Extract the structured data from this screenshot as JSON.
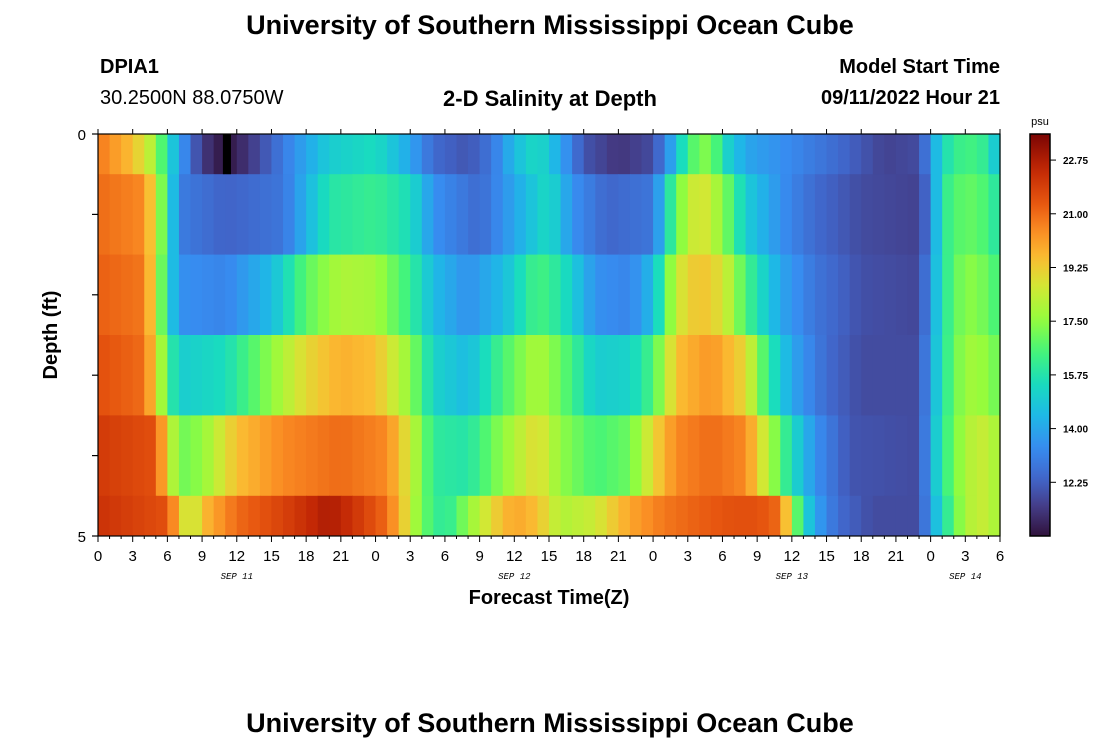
{
  "header": {
    "title": "University of Southern Mississippi Ocean Cube",
    "station_id": "DPIA1",
    "station_coords": "30.2500N  88.0750W",
    "subtitle": "2-D Salinity at Depth",
    "model_start_label": "Model Start Time",
    "model_start_value": "09/11/2022 Hour 21"
  },
  "footer": {
    "title": "University of Southern Mississippi Ocean Cube"
  },
  "chart_data": {
    "type": "heatmap",
    "title": "2-D Salinity at Depth",
    "xlabel": "Forecast Time(Z)",
    "ylabel": "Depth (ft)",
    "ylim": [
      0,
      5
    ],
    "y_tick_labels": [
      "0",
      "5"
    ],
    "x_tick_labels": [
      "0",
      "3",
      "6",
      "9",
      "12",
      "15",
      "18",
      "21",
      "0",
      "3",
      "6",
      "9",
      "12",
      "15",
      "18",
      "21",
      "0",
      "3",
      "6",
      "9",
      "12",
      "15",
      "18",
      "21",
      "0",
      "3",
      "6"
    ],
    "date_labels": [
      {
        "label": "SEP 11",
        "hour": 12
      },
      {
        "label": "SEP 12",
        "hour": 36
      },
      {
        "label": "SEP 13",
        "hour": 60
      },
      {
        "label": "SEP 14",
        "hour": 75
      }
    ],
    "x_hours_range": [
      0,
      78
    ],
    "colorbar": {
      "unit": "psu",
      "min": 10.5,
      "max": 23.6,
      "tick_labels": [
        "22.75",
        "21.00",
        "19.25",
        "17.50",
        "15.75",
        "14.00",
        "12.25"
      ],
      "tick_values": [
        22.75,
        21.0,
        19.25,
        17.5,
        15.75,
        14.0,
        12.25
      ]
    },
    "depth_layers": [
      {
        "depth_ft": "0.0-0.5",
        "keyframes": [
          [
            0,
            20.8
          ],
          [
            3,
            19.5
          ],
          [
            5,
            17.8
          ],
          [
            6,
            15.5
          ],
          [
            7,
            14.0
          ],
          [
            8,
            12.5
          ],
          [
            9,
            11.5
          ],
          [
            10,
            10.9
          ],
          [
            11,
            10.6
          ],
          [
            12,
            10.9
          ],
          [
            14,
            11.8
          ],
          [
            17,
            13.5
          ],
          [
            20,
            15.0
          ],
          [
            24,
            15.5
          ],
          [
            27,
            14.0
          ],
          [
            29,
            12.5
          ],
          [
            32,
            12.0
          ],
          [
            34,
            12.8
          ],
          [
            36,
            14.5
          ],
          [
            38,
            15.5
          ],
          [
            40,
            14.0
          ],
          [
            42,
            12.0
          ],
          [
            45,
            11.3
          ],
          [
            48,
            11.8
          ],
          [
            50,
            14.5
          ],
          [
            51,
            16.5
          ],
          [
            53,
            17.5
          ],
          [
            54,
            15.5
          ],
          [
            56,
            14.0
          ],
          [
            60,
            13.3
          ],
          [
            64,
            12.5
          ],
          [
            68,
            11.6
          ],
          [
            71,
            11.8
          ],
          [
            72,
            13.5
          ],
          [
            73,
            15.5
          ],
          [
            75,
            16.5
          ],
          [
            77,
            16.0
          ],
          [
            78,
            14.0
          ]
        ]
      },
      {
        "depth_ft": "0.5-1.5",
        "keyframes": [
          [
            0,
            21.0
          ],
          [
            4,
            20.5
          ],
          [
            5,
            18.5
          ],
          [
            6,
            16.0
          ],
          [
            7,
            13.0
          ],
          [
            11,
            12.3
          ],
          [
            16,
            12.8
          ],
          [
            20,
            15.8
          ],
          [
            24,
            16.2
          ],
          [
            27,
            15.5
          ],
          [
            29,
            13.5
          ],
          [
            33,
            12.5
          ],
          [
            36,
            14.0
          ],
          [
            39,
            15.5
          ],
          [
            41,
            13.5
          ],
          [
            44,
            12.4
          ],
          [
            48,
            12.8
          ],
          [
            50,
            17.0
          ],
          [
            52,
            19.0
          ],
          [
            54,
            17.5
          ],
          [
            56,
            15.0
          ],
          [
            59,
            13.5
          ],
          [
            62,
            12.5
          ],
          [
            66,
            11.8
          ],
          [
            71,
            11.6
          ],
          [
            72,
            13.0
          ],
          [
            73,
            16.0
          ],
          [
            75,
            17.0
          ],
          [
            77,
            16.5
          ],
          [
            78,
            15.5
          ]
        ]
      },
      {
        "depth_ft": "1.5-2.5",
        "keyframes": [
          [
            0,
            21.2
          ],
          [
            4,
            20.8
          ],
          [
            5,
            18.5
          ],
          [
            6,
            15.5
          ],
          [
            7,
            13.5
          ],
          [
            11,
            13.2
          ],
          [
            15,
            14.5
          ],
          [
            18,
            16.8
          ],
          [
            21,
            18.0
          ],
          [
            24,
            17.8
          ],
          [
            27,
            16.2
          ],
          [
            29,
            14.5
          ],
          [
            32,
            13.5
          ],
          [
            35,
            14.5
          ],
          [
            38,
            16.5
          ],
          [
            40,
            15.8
          ],
          [
            43,
            13.5
          ],
          [
            46,
            13.2
          ],
          [
            48,
            14.5
          ],
          [
            50,
            18.5
          ],
          [
            52,
            19.5
          ],
          [
            54,
            18.8
          ],
          [
            56,
            16.5
          ],
          [
            59,
            14.0
          ],
          [
            62,
            12.8
          ],
          [
            66,
            11.9
          ],
          [
            71,
            11.7
          ],
          [
            72,
            13.5
          ],
          [
            73,
            15.8
          ],
          [
            75,
            17.5
          ],
          [
            77,
            17.0
          ],
          [
            78,
            16.2
          ]
        ]
      },
      {
        "depth_ft": "2.5-3.5",
        "keyframes": [
          [
            0,
            21.5
          ],
          [
            4,
            21.0
          ],
          [
            5,
            19.0
          ],
          [
            6,
            16.5
          ],
          [
            7,
            15.0
          ],
          [
            11,
            15.5
          ],
          [
            14,
            17.0
          ],
          [
            18,
            19.0
          ],
          [
            21,
            19.8
          ],
          [
            24,
            19.5
          ],
          [
            27,
            17.5
          ],
          [
            29,
            15.2
          ],
          [
            32,
            14.5
          ],
          [
            35,
            16.5
          ],
          [
            38,
            18.0
          ],
          [
            40,
            17.0
          ],
          [
            43,
            15.0
          ],
          [
            46,
            15.2
          ],
          [
            48,
            16.5
          ],
          [
            50,
            19.5
          ],
          [
            53,
            20.3
          ],
          [
            56,
            19.0
          ],
          [
            58,
            16.0
          ],
          [
            60,
            14.0
          ],
          [
            63,
            12.5
          ],
          [
            66,
            11.8
          ],
          [
            71,
            11.8
          ],
          [
            72,
            13.8
          ],
          [
            73,
            15.8
          ],
          [
            75,
            17.8
          ],
          [
            77,
            17.5
          ],
          [
            78,
            16.8
          ]
        ]
      },
      {
        "depth_ft": "3.5-4.5",
        "keyframes": [
          [
            0,
            22.0
          ],
          [
            5,
            21.5
          ],
          [
            6,
            19.0
          ],
          [
            7,
            17.0
          ],
          [
            9,
            17.5
          ],
          [
            12,
            19.5
          ],
          [
            16,
            20.5
          ],
          [
            21,
            21.0
          ],
          [
            25,
            20.5
          ],
          [
            27,
            18.5
          ],
          [
            29,
            16.0
          ],
          [
            32,
            15.8
          ],
          [
            35,
            17.5
          ],
          [
            38,
            19.0
          ],
          [
            40,
            17.5
          ],
          [
            43,
            16.5
          ],
          [
            46,
            17.0
          ],
          [
            48,
            19.0
          ],
          [
            50,
            20.5
          ],
          [
            53,
            21.0
          ],
          [
            56,
            20.5
          ],
          [
            58,
            18.0
          ],
          [
            60,
            15.5
          ],
          [
            62,
            13.5
          ],
          [
            65,
            12.0
          ],
          [
            71,
            11.8
          ],
          [
            72,
            14.0
          ],
          [
            73,
            16.0
          ],
          [
            75,
            18.0
          ],
          [
            77,
            18.5
          ],
          [
            78,
            17.5
          ]
        ]
      },
      {
        "depth_ft": "4.5-5.0",
        "keyframes": [
          [
            0,
            22.2
          ],
          [
            6,
            21.5
          ],
          [
            7,
            19.5
          ],
          [
            8,
            18.0
          ],
          [
            9,
            19.5
          ],
          [
            12,
            21.0
          ],
          [
            16,
            21.8
          ],
          [
            20,
            22.8
          ],
          [
            22,
            22.2
          ],
          [
            25,
            21.0
          ],
          [
            27,
            18.5
          ],
          [
            28,
            17.0
          ],
          [
            30,
            15.8
          ],
          [
            32,
            17.5
          ],
          [
            34,
            19.0
          ],
          [
            36,
            20.0
          ],
          [
            38,
            19.5
          ],
          [
            40,
            18.0
          ],
          [
            43,
            18.5
          ],
          [
            46,
            20.0
          ],
          [
            49,
            20.8
          ],
          [
            52,
            21.2
          ],
          [
            55,
            21.5
          ],
          [
            57,
            21.5
          ],
          [
            59,
            21.0
          ],
          [
            60,
            18.0
          ],
          [
            61,
            15.5
          ],
          [
            62,
            14.0
          ],
          [
            64,
            12.5
          ],
          [
            67,
            11.8
          ],
          [
            71,
            11.8
          ],
          [
            72,
            13.8
          ],
          [
            73,
            15.5
          ],
          [
            75,
            18.0
          ],
          [
            77,
            18.5
          ],
          [
            78,
            17.5
          ]
        ]
      }
    ]
  }
}
